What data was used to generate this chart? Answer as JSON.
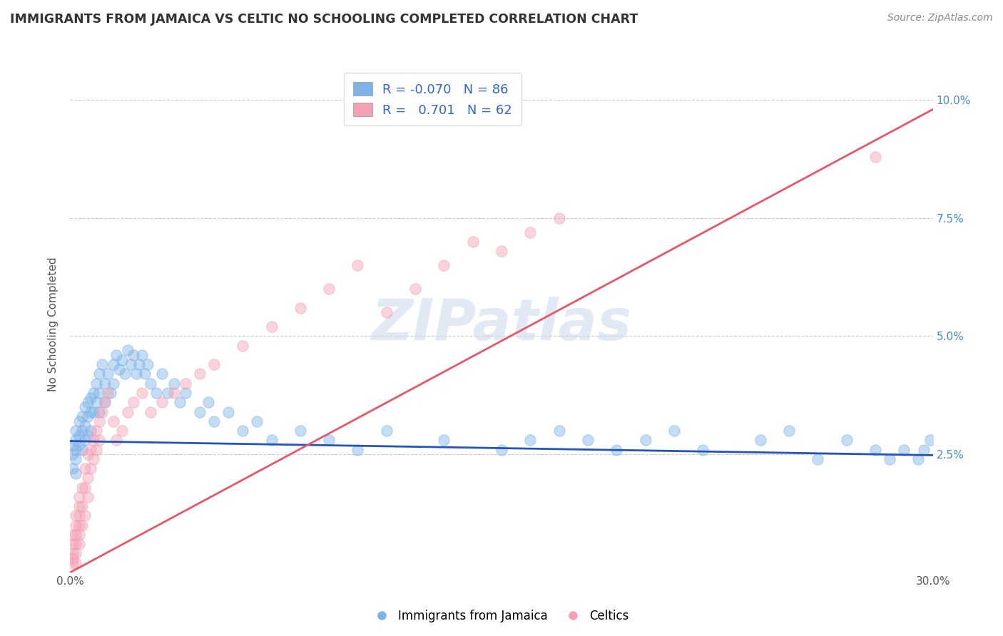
{
  "title": "IMMIGRANTS FROM JAMAICA VS CELTIC NO SCHOOLING COMPLETED CORRELATION CHART",
  "source": "Source: ZipAtlas.com",
  "ylabel": "No Schooling Completed",
  "xlim": [
    0.0,
    0.3
  ],
  "ylim": [
    0.0,
    0.105
  ],
  "xticks": [
    0.0,
    0.05,
    0.1,
    0.15,
    0.2,
    0.25,
    0.3
  ],
  "xticklabels": [
    "0.0%",
    "",
    "",
    "",
    "",
    "",
    "30.0%"
  ],
  "yticks": [
    0.0,
    0.025,
    0.05,
    0.075,
    0.1
  ],
  "yticklabels": [
    "",
    "2.5%",
    "5.0%",
    "7.5%",
    "10.0%"
  ],
  "blue_color": "#7EB3E8",
  "pink_color": "#F4A0B5",
  "blue_line_color": "#2255BB",
  "pink_line_color": "#E8566A",
  "legend_blue_R": "-0.070",
  "legend_blue_N": "86",
  "legend_pink_R": "0.701",
  "legend_pink_N": "62",
  "watermark": "ZIPatlas",
  "legend_label_blue": "Immigrants from Jamaica",
  "legend_label_pink": "Celtics",
  "blue_line_x0": 0.0,
  "blue_line_y0": 0.0278,
  "blue_line_x1": 0.3,
  "blue_line_y1": 0.0248,
  "pink_line_x0": 0.0,
  "pink_line_y0": 0.0,
  "pink_line_x1": 0.3,
  "pink_line_y1": 0.098,
  "blue_points_x": [
    0.001,
    0.001,
    0.001,
    0.002,
    0.002,
    0.002,
    0.002,
    0.002,
    0.003,
    0.003,
    0.003,
    0.004,
    0.004,
    0.004,
    0.005,
    0.005,
    0.005,
    0.006,
    0.006,
    0.006,
    0.007,
    0.007,
    0.007,
    0.008,
    0.008,
    0.009,
    0.009,
    0.01,
    0.01,
    0.01,
    0.011,
    0.012,
    0.012,
    0.013,
    0.014,
    0.015,
    0.015,
    0.016,
    0.017,
    0.018,
    0.019,
    0.02,
    0.021,
    0.022,
    0.023,
    0.024,
    0.025,
    0.026,
    0.027,
    0.028,
    0.03,
    0.032,
    0.034,
    0.036,
    0.038,
    0.04,
    0.045,
    0.048,
    0.05,
    0.055,
    0.06,
    0.065,
    0.07,
    0.08,
    0.09,
    0.1,
    0.11,
    0.13,
    0.15,
    0.16,
    0.17,
    0.18,
    0.19,
    0.2,
    0.21,
    0.22,
    0.24,
    0.25,
    0.26,
    0.27,
    0.28,
    0.285,
    0.29,
    0.295,
    0.297,
    0.299
  ],
  "blue_points_y": [
    0.027,
    0.025,
    0.022,
    0.03,
    0.028,
    0.026,
    0.024,
    0.021,
    0.032,
    0.029,
    0.027,
    0.033,
    0.03,
    0.026,
    0.035,
    0.031,
    0.028,
    0.036,
    0.033,
    0.029,
    0.037,
    0.034,
    0.03,
    0.038,
    0.034,
    0.04,
    0.036,
    0.042,
    0.038,
    0.034,
    0.044,
    0.04,
    0.036,
    0.042,
    0.038,
    0.044,
    0.04,
    0.046,
    0.043,
    0.045,
    0.042,
    0.047,
    0.044,
    0.046,
    0.042,
    0.044,
    0.046,
    0.042,
    0.044,
    0.04,
    0.038,
    0.042,
    0.038,
    0.04,
    0.036,
    0.038,
    0.034,
    0.036,
    0.032,
    0.034,
    0.03,
    0.032,
    0.028,
    0.03,
    0.028,
    0.026,
    0.03,
    0.028,
    0.026,
    0.028,
    0.03,
    0.028,
    0.026,
    0.028,
    0.03,
    0.026,
    0.028,
    0.03,
    0.024,
    0.028,
    0.026,
    0.024,
    0.026,
    0.024,
    0.026,
    0.028
  ],
  "pink_points_x": [
    0.001,
    0.001,
    0.001,
    0.001,
    0.001,
    0.002,
    0.002,
    0.002,
    0.002,
    0.002,
    0.002,
    0.003,
    0.003,
    0.003,
    0.003,
    0.003,
    0.003,
    0.004,
    0.004,
    0.004,
    0.005,
    0.005,
    0.005,
    0.006,
    0.006,
    0.006,
    0.007,
    0.007,
    0.008,
    0.008,
    0.009,
    0.009,
    0.01,
    0.01,
    0.011,
    0.012,
    0.013,
    0.015,
    0.016,
    0.018,
    0.02,
    0.022,
    0.025,
    0.028,
    0.032,
    0.036,
    0.04,
    0.045,
    0.05,
    0.06,
    0.07,
    0.08,
    0.09,
    0.1,
    0.11,
    0.12,
    0.13,
    0.14,
    0.15,
    0.16,
    0.17,
    0.28
  ],
  "pink_points_y": [
    0.008,
    0.006,
    0.004,
    0.003,
    0.002,
    0.012,
    0.01,
    0.008,
    0.006,
    0.004,
    0.002,
    0.016,
    0.014,
    0.012,
    0.01,
    0.008,
    0.006,
    0.018,
    0.014,
    0.01,
    0.022,
    0.018,
    0.012,
    0.025,
    0.02,
    0.016,
    0.026,
    0.022,
    0.028,
    0.024,
    0.03,
    0.026,
    0.032,
    0.028,
    0.034,
    0.036,
    0.038,
    0.032,
    0.028,
    0.03,
    0.034,
    0.036,
    0.038,
    0.034,
    0.036,
    0.038,
    0.04,
    0.042,
    0.044,
    0.048,
    0.052,
    0.056,
    0.06,
    0.065,
    0.055,
    0.06,
    0.065,
    0.07,
    0.068,
    0.072,
    0.075,
    0.088
  ]
}
